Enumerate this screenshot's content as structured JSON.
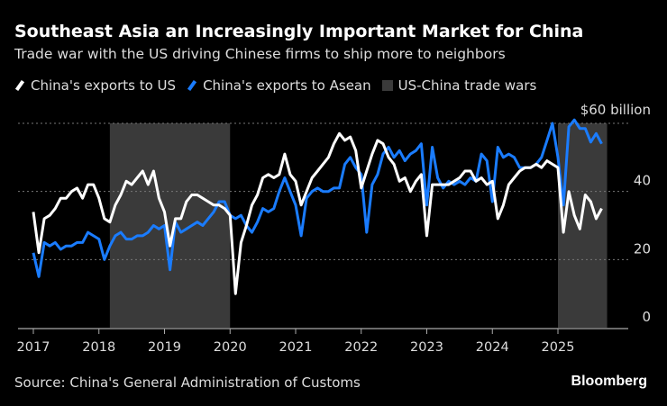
{
  "chart_data": {
    "type": "line",
    "title": "Southeast Asia an Increasingly Important Market for China",
    "subtitle": "Trade war with the US driving Chinese firms to ship more to neighbors",
    "x_start": "2017-01",
    "frequency": "monthly",
    "xtick_labels": [
      "2017",
      "2018",
      "2019",
      "2020",
      "2021",
      "2022",
      "2023",
      "2024",
      "2025"
    ],
    "ytick_labels": [
      "0",
      "20",
      "40",
      "$60 billion"
    ],
    "yticks": [
      0,
      20,
      40,
      60
    ],
    "ylim": [
      0,
      60
    ],
    "grid": true,
    "series": [
      {
        "name": "China's exports to US",
        "color": "#ffffff",
        "values": [
          34,
          22,
          32,
          33,
          35,
          38,
          38,
          40,
          41,
          38,
          42,
          42,
          38,
          32,
          31,
          36,
          39,
          43,
          42,
          44,
          46,
          42,
          46,
          38,
          34,
          24,
          32,
          32,
          37,
          39,
          39,
          38,
          37,
          36,
          36,
          35,
          33,
          10,
          25,
          30,
          36,
          39,
          44,
          45,
          44,
          45,
          51,
          45,
          43,
          36,
          40,
          44,
          46,
          48,
          50,
          54,
          57,
          55,
          56,
          52,
          41,
          46,
          51,
          55,
          54,
          50,
          48,
          43,
          44,
          40,
          43,
          45,
          27,
          42,
          42,
          42,
          42,
          43,
          44,
          46,
          46,
          43,
          44,
          42,
          43,
          32,
          36,
          42,
          44,
          46,
          47,
          47,
          48,
          47,
          49,
          48,
          47,
          28,
          40,
          33,
          29,
          39,
          37,
          32,
          35
        ]
      },
      {
        "name": "China's exports to Asean",
        "color": "#1a7cff",
        "values": [
          22,
          15,
          25,
          24,
          25,
          23,
          24,
          24,
          25,
          25,
          28,
          27,
          26,
          20,
          24,
          27,
          28,
          26,
          26,
          27,
          27,
          28,
          30,
          29,
          30,
          17,
          31,
          28,
          29,
          30,
          31,
          30,
          32,
          34,
          37,
          37,
          33,
          32,
          33,
          30,
          28,
          31,
          35,
          34,
          35,
          40,
          44,
          40,
          36,
          27,
          38,
          40,
          41,
          40,
          40,
          41,
          41,
          48,
          50,
          47,
          45,
          28,
          42,
          45,
          51,
          53,
          50,
          52,
          49,
          51,
          52,
          54,
          36,
          53,
          44,
          41,
          43,
          42,
          43,
          42,
          44,
          43,
          51,
          49,
          37,
          53,
          50,
          51,
          50,
          47,
          47,
          47,
          48,
          50,
          55,
          60,
          50,
          36,
          59,
          61,
          58.5,
          58.5,
          54.5,
          57,
          54
        ]
      }
    ],
    "shaded_periods": {
      "name": "US-China trade wars",
      "color": "#3a3a3a",
      "ranges": [
        [
          "2018-03",
          "2019-12"
        ],
        [
          "2025-01",
          "2025-09"
        ]
      ]
    }
  },
  "source": "Source: China's General Administration of Customs",
  "brand": "Bloomberg"
}
